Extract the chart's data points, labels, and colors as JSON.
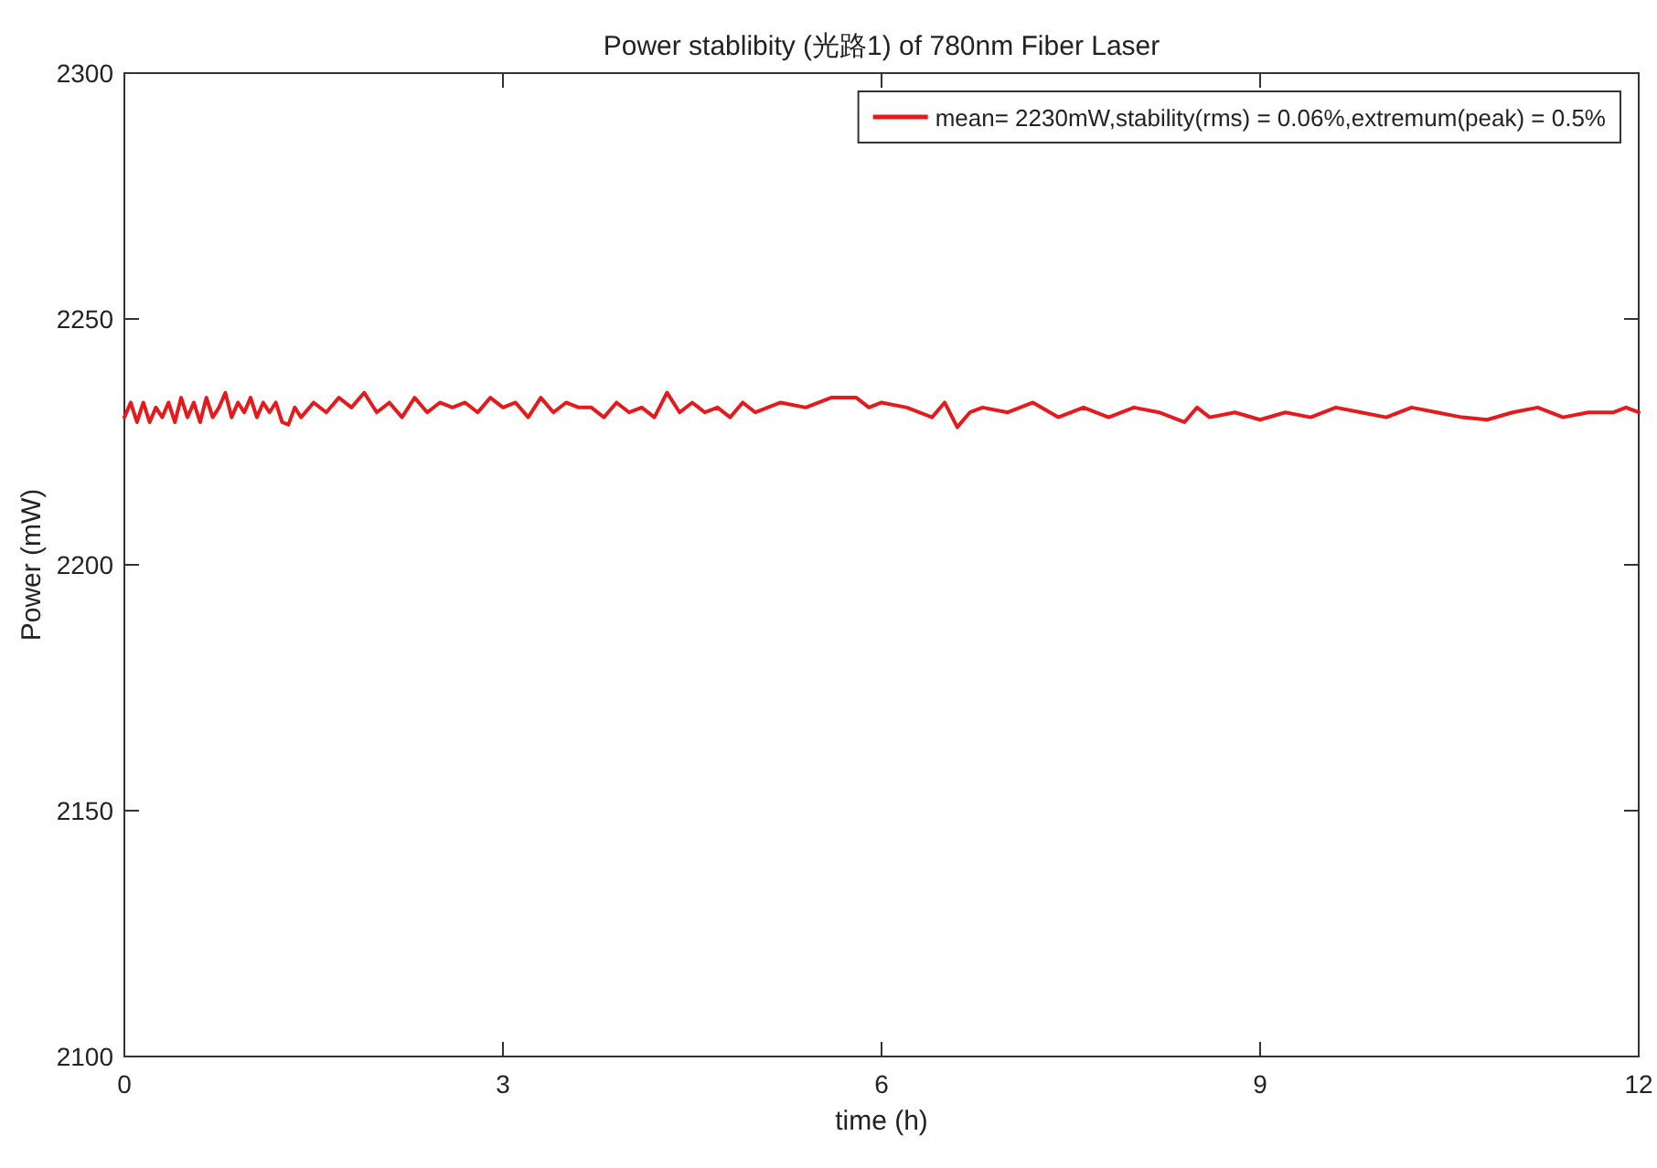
{
  "chart_data": {
    "type": "line",
    "title": "Power stablibity (光路1) of 780nm Fiber Laser",
    "xlabel": "time (h)",
    "ylabel": "Power (mW)",
    "xlim": [
      0,
      12
    ],
    "xticks": [
      0,
      3,
      6,
      9,
      12
    ],
    "ylim": [
      2100,
      2300
    ],
    "yticks": [
      2100,
      2150,
      2200,
      2250,
      2300
    ],
    "legend": "top right",
    "grid": false,
    "series": [
      {
        "name": "mean= 2230mW,stability(rms) = 0.06%,extremum(peak) = 0.5%",
        "color": "#e41a1c",
        "x": [
          0,
          0.05,
          0.1,
          0.15,
          0.2,
          0.25,
          0.3,
          0.35,
          0.4,
          0.45,
          0.5,
          0.55,
          0.6,
          0.65,
          0.7,
          0.75,
          0.8,
          0.85,
          0.9,
          0.95,
          1.0,
          1.05,
          1.1,
          1.15,
          1.2,
          1.25,
          1.3,
          1.35,
          1.4,
          1.5,
          1.6,
          1.7,
          1.8,
          1.9,
          2.0,
          2.1,
          2.2,
          2.3,
          2.4,
          2.5,
          2.6,
          2.7,
          2.8,
          2.9,
          3.0,
          3.1,
          3.2,
          3.3,
          3.4,
          3.5,
          3.6,
          3.7,
          3.8,
          3.9,
          4.0,
          4.1,
          4.2,
          4.3,
          4.4,
          4.5,
          4.6,
          4.7,
          4.8,
          4.9,
          5.0,
          5.2,
          5.4,
          5.6,
          5.8,
          5.9,
          6.0,
          6.2,
          6.4,
          6.5,
          6.6,
          6.7,
          6.8,
          7.0,
          7.2,
          7.4,
          7.6,
          7.8,
          8.0,
          8.2,
          8.4,
          8.5,
          8.6,
          8.8,
          9.0,
          9.2,
          9.4,
          9.6,
          9.8,
          10.0,
          10.2,
          10.4,
          10.6,
          10.8,
          11.0,
          11.2,
          11.4,
          11.6,
          11.8,
          11.9,
          12.0
        ],
        "values": [
          2230,
          2233,
          2229,
          2233,
          2229,
          2232,
          2230,
          2233,
          2229,
          2234,
          2230,
          2233,
          2229,
          2234,
          2230,
          2232,
          2235,
          2230,
          2233,
          2231,
          2234,
          2230,
          2233,
          2231,
          2233,
          2229,
          2228.5,
          2232,
          2230,
          2233,
          2231,
          2234,
          2232,
          2235,
          2231,
          2233,
          2230,
          2234,
          2231,
          2233,
          2232,
          2233,
          2231,
          2234,
          2232,
          2233,
          2230,
          2234,
          2231,
          2233,
          2232,
          2232,
          2230,
          2233,
          2231,
          2232,
          2230,
          2235,
          2231,
          2233,
          2231,
          2232,
          2230,
          2233,
          2231,
          2233,
          2232,
          2234,
          2234,
          2232,
          2233,
          2232,
          2230,
          2233,
          2228,
          2231,
          2232,
          2231,
          2233,
          2230,
          2232,
          2230,
          2232,
          2231,
          2229,
          2232,
          2230,
          2231,
          2229.5,
          2231,
          2230,
          2232,
          2231,
          2230,
          2232,
          2231,
          2230,
          2229.5,
          2231,
          2232,
          2230,
          2231,
          2231,
          2232,
          2231
        ]
      }
    ]
  }
}
